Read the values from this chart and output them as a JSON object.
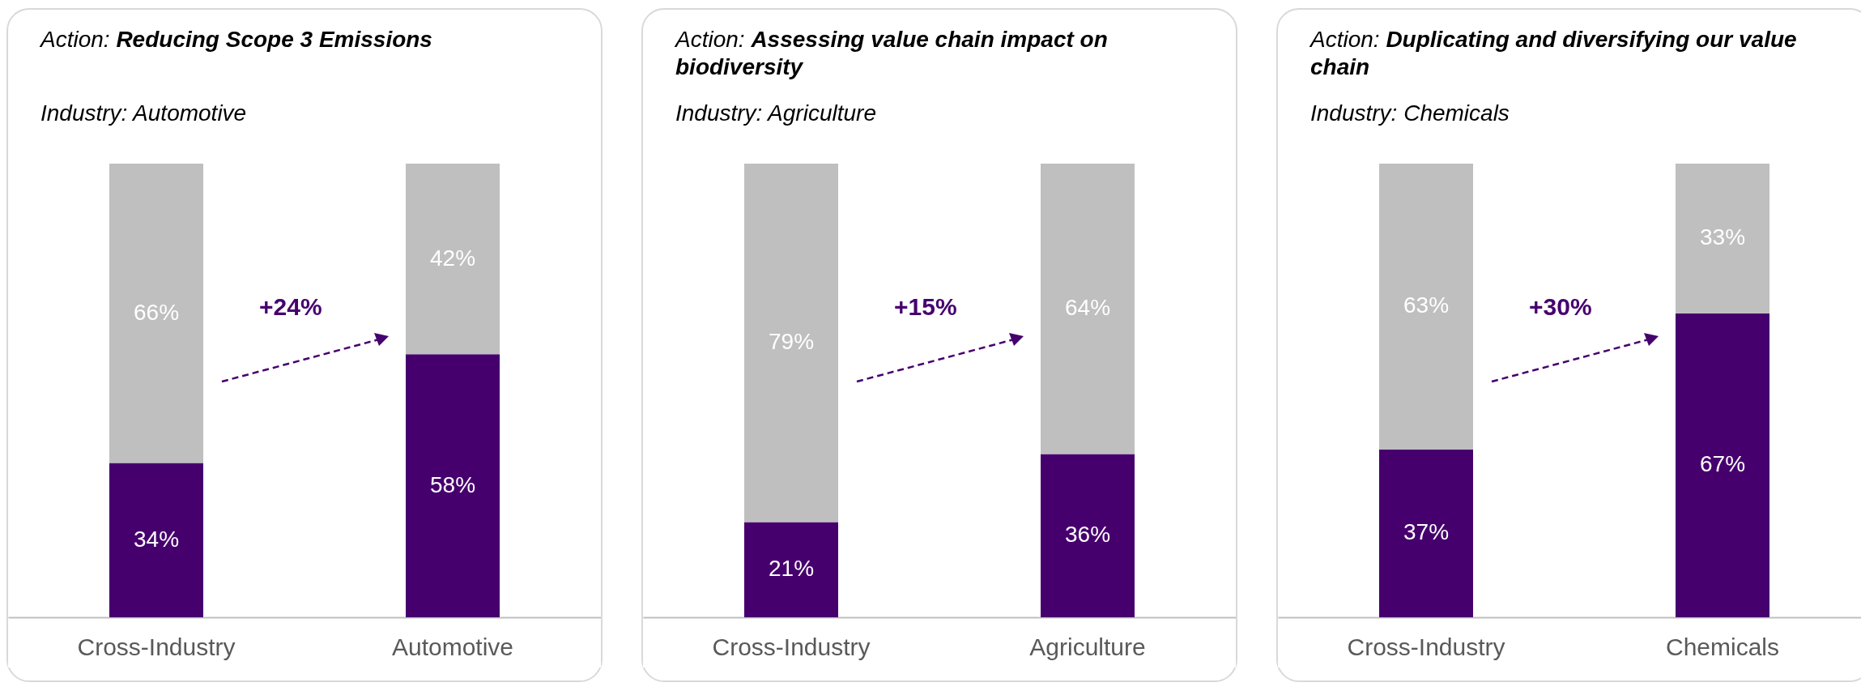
{
  "chart_data": [
    {
      "type": "bar",
      "title": "Action: Reducing Scope 3 Emissions",
      "subtitle": "Industry: Automotive",
      "categories": [
        "Cross-Industry",
        "Automotive"
      ],
      "stacked": true,
      "tick_labels": "x",
      "annotations": [
        "+24%"
      ],
      "series": [
        {
          "color": "#46006e",
          "values": [
            34,
            58
          ],
          "value_labels": [
            "34%",
            "58%"
          ]
        },
        {
          "color": "#bfbfbf",
          "values": [
            66,
            42
          ],
          "value_labels": [
            "66%",
            "42%"
          ]
        }
      ]
    },
    {
      "type": "bar",
      "title": "Action: Assessing value chain impact on biodiversity",
      "subtitle": "Industry: Agriculture",
      "categories": [
        "Cross-Industry",
        "Agriculture"
      ],
      "stacked": true,
      "tick_labels": "x",
      "annotations": [
        "+15%"
      ],
      "series": [
        {
          "color": "#46006e",
          "values": [
            21,
            36
          ],
          "value_labels": [
            "21%",
            "36%"
          ]
        },
        {
          "color": "#bfbfbf",
          "values": [
            79,
            64
          ],
          "value_labels": [
            "79%",
            "64%"
          ]
        }
      ]
    },
    {
      "type": "bar",
      "title": "Action: Duplicating and diversifying our value chain",
      "subtitle": "Industry: Chemicals",
      "categories": [
        "Cross-Industry",
        "Chemicals"
      ],
      "stacked": true,
      "tick_labels": "x",
      "annotations": [
        "+30%"
      ],
      "series": [
        {
          "color": "#46006e",
          "values": [
            37,
            67
          ],
          "value_labels": [
            "37%",
            "67%"
          ]
        },
        {
          "color": "#bfbfbf",
          "values": [
            63,
            33
          ],
          "value_labels": [
            "63%",
            "33%"
          ]
        }
      ]
    }
  ]
}
